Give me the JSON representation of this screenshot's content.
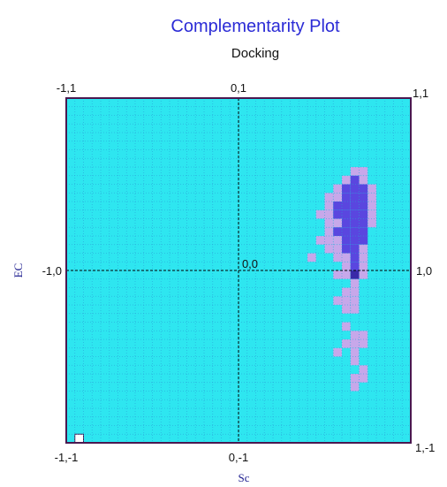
{
  "chart_data": {
    "type": "heatmap",
    "title": "Complementarity Plot",
    "subtitle": "Docking",
    "xlabel": "Sc",
    "ylabel": "EC",
    "xlim": [
      -1,
      1
    ],
    "ylim": [
      -1,
      1
    ],
    "grid_size": 40,
    "grid": true,
    "labels": {
      "top_left": "-1,1",
      "top_center": "0,1",
      "top_right": "1,1",
      "mid_left": "-1,0",
      "center": "0,0",
      "mid_right": "1,0",
      "bottom_left": "-1,-1",
      "bottom_center": "0,-1",
      "bottom_right": "1,-1"
    },
    "colors": {
      "background": "#2ee6f0",
      "gridline": "#2a9fd8",
      "border": "#4a1850",
      "low_density": "#c7a8ea",
      "high_density": "#5a46df",
      "peak": "#3a2aa8",
      "marker": "#ffffff"
    },
    "cells": [
      {
        "col": 33,
        "row": 8,
        "level": 1
      },
      {
        "col": 34,
        "row": 8,
        "level": 1
      },
      {
        "col": 32,
        "row": 9,
        "level": 1
      },
      {
        "col": 33,
        "row": 9,
        "level": 2
      },
      {
        "col": 34,
        "row": 9,
        "level": 1
      },
      {
        "col": 31,
        "row": 10,
        "level": 1
      },
      {
        "col": 32,
        "row": 10,
        "level": 2
      },
      {
        "col": 33,
        "row": 10,
        "level": 2
      },
      {
        "col": 34,
        "row": 10,
        "level": 2
      },
      {
        "col": 35,
        "row": 10,
        "level": 1
      },
      {
        "col": 30,
        "row": 11,
        "level": 1
      },
      {
        "col": 31,
        "row": 11,
        "level": 1
      },
      {
        "col": 32,
        "row": 11,
        "level": 2
      },
      {
        "col": 33,
        "row": 11,
        "level": 2
      },
      {
        "col": 34,
        "row": 11,
        "level": 2
      },
      {
        "col": 35,
        "row": 11,
        "level": 1
      },
      {
        "col": 30,
        "row": 12,
        "level": 1
      },
      {
        "col": 31,
        "row": 12,
        "level": 2
      },
      {
        "col": 32,
        "row": 12,
        "level": 2
      },
      {
        "col": 33,
        "row": 12,
        "level": 2
      },
      {
        "col": 34,
        "row": 12,
        "level": 2
      },
      {
        "col": 35,
        "row": 12,
        "level": 1
      },
      {
        "col": 29,
        "row": 13,
        "level": 1
      },
      {
        "col": 30,
        "row": 13,
        "level": 1
      },
      {
        "col": 31,
        "row": 13,
        "level": 2
      },
      {
        "col": 32,
        "row": 13,
        "level": 2
      },
      {
        "col": 33,
        "row": 13,
        "level": 2
      },
      {
        "col": 34,
        "row": 13,
        "level": 2
      },
      {
        "col": 35,
        "row": 13,
        "level": 1
      },
      {
        "col": 30,
        "row": 14,
        "level": 1
      },
      {
        "col": 31,
        "row": 14,
        "level": 1
      },
      {
        "col": 32,
        "row": 14,
        "level": 2
      },
      {
        "col": 33,
        "row": 14,
        "level": 2
      },
      {
        "col": 34,
        "row": 14,
        "level": 2
      },
      {
        "col": 35,
        "row": 14,
        "level": 1
      },
      {
        "col": 30,
        "row": 15,
        "level": 1
      },
      {
        "col": 31,
        "row": 15,
        "level": 2
      },
      {
        "col": 32,
        "row": 15,
        "level": 2
      },
      {
        "col": 33,
        "row": 15,
        "level": 2
      },
      {
        "col": 34,
        "row": 15,
        "level": 2
      },
      {
        "col": 29,
        "row": 16,
        "level": 1
      },
      {
        "col": 30,
        "row": 16,
        "level": 1
      },
      {
        "col": 31,
        "row": 16,
        "level": 1
      },
      {
        "col": 32,
        "row": 16,
        "level": 2
      },
      {
        "col": 33,
        "row": 16,
        "level": 2
      },
      {
        "col": 34,
        "row": 16,
        "level": 2
      },
      {
        "col": 30,
        "row": 17,
        "level": 1
      },
      {
        "col": 31,
        "row": 17,
        "level": 1
      },
      {
        "col": 32,
        "row": 17,
        "level": 2
      },
      {
        "col": 33,
        "row": 17,
        "level": 2
      },
      {
        "col": 34,
        "row": 17,
        "level": 1
      },
      {
        "col": 28,
        "row": 18,
        "level": 1
      },
      {
        "col": 31,
        "row": 18,
        "level": 1
      },
      {
        "col": 32,
        "row": 18,
        "level": 1
      },
      {
        "col": 33,
        "row": 18,
        "level": 2
      },
      {
        "col": 34,
        "row": 18,
        "level": 1
      },
      {
        "col": 32,
        "row": 19,
        "level": 1
      },
      {
        "col": 33,
        "row": 19,
        "level": 2
      },
      {
        "col": 34,
        "row": 19,
        "level": 1
      },
      {
        "col": 31,
        "row": 20,
        "level": 1
      },
      {
        "col": 32,
        "row": 20,
        "level": 1
      },
      {
        "col": 33,
        "row": 20,
        "level": 3
      },
      {
        "col": 34,
        "row": 20,
        "level": 1
      },
      {
        "col": 33,
        "row": 21,
        "level": 1
      },
      {
        "col": 32,
        "row": 22,
        "level": 1
      },
      {
        "col": 33,
        "row": 22,
        "level": 1
      },
      {
        "col": 31,
        "row": 23,
        "level": 1
      },
      {
        "col": 32,
        "row": 23,
        "level": 1
      },
      {
        "col": 33,
        "row": 23,
        "level": 1
      },
      {
        "col": 32,
        "row": 24,
        "level": 1
      },
      {
        "col": 33,
        "row": 24,
        "level": 1
      },
      {
        "col": 32,
        "row": 26,
        "level": 1
      },
      {
        "col": 33,
        "row": 27,
        "level": 1
      },
      {
        "col": 34,
        "row": 27,
        "level": 1
      },
      {
        "col": 32,
        "row": 28,
        "level": 1
      },
      {
        "col": 33,
        "row": 28,
        "level": 1
      },
      {
        "col": 34,
        "row": 28,
        "level": 1
      },
      {
        "col": 31,
        "row": 29,
        "level": 1
      },
      {
        "col": 33,
        "row": 29,
        "level": 1
      },
      {
        "col": 33,
        "row": 30,
        "level": 1
      },
      {
        "col": 34,
        "row": 31,
        "level": 1
      },
      {
        "col": 33,
        "row": 32,
        "level": 1
      },
      {
        "col": 34,
        "row": 32,
        "level": 1
      },
      {
        "col": 33,
        "row": 33,
        "level": 1
      },
      {
        "col": 1,
        "row": 39,
        "level": 0
      }
    ]
  }
}
